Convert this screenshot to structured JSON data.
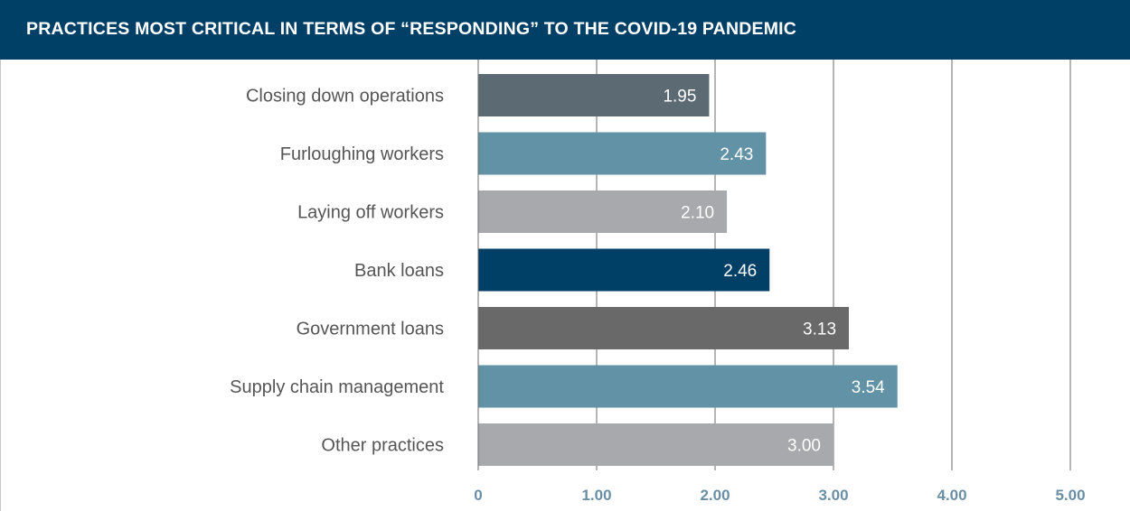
{
  "header": {
    "title": "PRACTICES MOST CRITICAL IN TERMS OF “RESPONDING” TO THE COVID-19 PANDEMIC"
  },
  "chart_data": {
    "type": "bar",
    "orientation": "horizontal",
    "title": "PRACTICES MOST CRITICAL IN TERMS OF “RESPONDING” TO THE COVID-19 PANDEMIC",
    "categories": [
      "Closing down operations",
      "Furloughing workers",
      "Laying off workers",
      "Bank loans",
      "Government loans",
      "Supply chain management",
      "Other practices"
    ],
    "values": [
      1.95,
      2.43,
      2.1,
      2.46,
      3.13,
      3.54,
      3.0
    ],
    "value_labels": [
      "1.95",
      "2.43",
      "2.10",
      "2.46",
      "3.13",
      "3.54",
      "3.00"
    ],
    "bar_colors": [
      "#5c6a74",
      "#6192a6",
      "#a7a9ac",
      "#003f66",
      "#696969",
      "#6192a6",
      "#a7a9ac"
    ],
    "x_ticks": [
      0,
      1,
      2,
      3,
      4,
      5
    ],
    "x_tick_labels": [
      "0",
      "1.00",
      "2.00",
      "3.00",
      "4.00",
      "5.00"
    ],
    "xlim": [
      0,
      5
    ],
    "grid": true,
    "xlabel": "",
    "ylabel": ""
  }
}
